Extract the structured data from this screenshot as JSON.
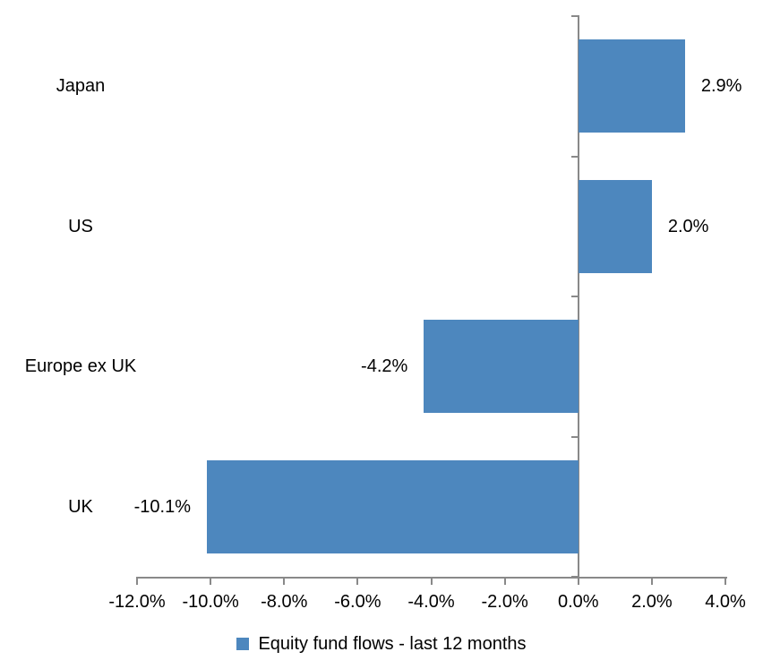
{
  "chart_data": {
    "type": "bar",
    "orientation": "horizontal",
    "title": "",
    "xlabel": "",
    "ylabel": "",
    "categories": [
      "Japan",
      "US",
      "Europe ex UK",
      "UK"
    ],
    "values": [
      2.9,
      2.0,
      -4.2,
      -10.1
    ],
    "value_labels": [
      "2.9%",
      "2.0%",
      "-4.2%",
      "-10.1%"
    ],
    "series": [
      {
        "name": "Equity fund flows - last 12 months",
        "values": [
          2.9,
          2.0,
          -4.2,
          -10.1
        ]
      }
    ],
    "xlim": [
      -12,
      4
    ],
    "x_ticks": [
      -12,
      -10,
      -8,
      -6,
      -4,
      -2,
      0,
      2,
      4
    ],
    "x_tick_labels": [
      "-12.0%",
      "-10.0%",
      "-8.0%",
      "-6.0%",
      "-4.0%",
      "-2.0%",
      "0.0%",
      "2.0%",
      "4.0%"
    ],
    "grid": false,
    "legend_position": "bottom",
    "colors": {
      "bar": "#4D87BE",
      "axis": "#898989",
      "text": "#000000",
      "background": "#FFFFFF"
    },
    "legend": {
      "label": "Equity fund flows - last 12 months"
    }
  }
}
